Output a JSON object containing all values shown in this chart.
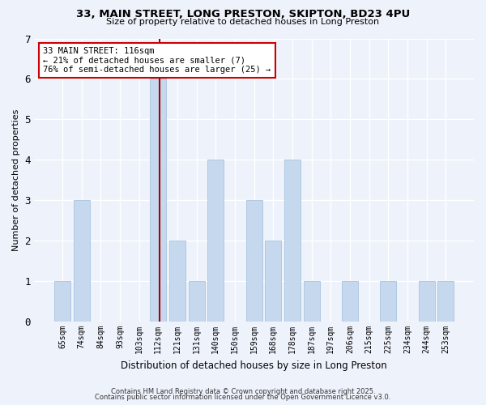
{
  "title": "33, MAIN STREET, LONG PRESTON, SKIPTON, BD23 4PU",
  "subtitle": "Size of property relative to detached houses in Long Preston",
  "xlabel": "Distribution of detached houses by size in Long Preston",
  "ylabel": "Number of detached properties",
  "bar_color": "#c5d8ee",
  "bar_edgecolor": "#a8c4df",
  "bg_color": "#eef2fb",
  "grid_color": "#ffffff",
  "bins": [
    "65sqm",
    "74sqm",
    "84sqm",
    "93sqm",
    "103sqm",
    "112sqm",
    "121sqm",
    "131sqm",
    "140sqm",
    "150sqm",
    "159sqm",
    "168sqm",
    "178sqm",
    "187sqm",
    "197sqm",
    "206sqm",
    "215sqm",
    "225sqm",
    "234sqm",
    "244sqm",
    "253sqm"
  ],
  "counts": [
    1,
    3,
    0,
    0,
    0,
    6,
    2,
    1,
    4,
    0,
    3,
    2,
    4,
    1,
    0,
    1,
    0,
    1,
    0,
    1,
    1
  ],
  "subject_bin_index": 5,
  "subject_line_color": "#aa0000",
  "annotation_line1": "33 MAIN STREET: 116sqm",
  "annotation_line2": "← 21% of detached houses are smaller (7)",
  "annotation_line3": "76% of semi-detached houses are larger (25) →",
  "annotation_box_edgecolor": "#cc0000",
  "annotation_box_facecolor": "#ffffff",
  "ylim": [
    0,
    7
  ],
  "yticks": [
    0,
    1,
    2,
    3,
    4,
    5,
    6,
    7
  ],
  "footer1": "Contains HM Land Registry data © Crown copyright and database right 2025.",
  "footer2": "Contains public sector information licensed under the Open Government Licence v3.0."
}
